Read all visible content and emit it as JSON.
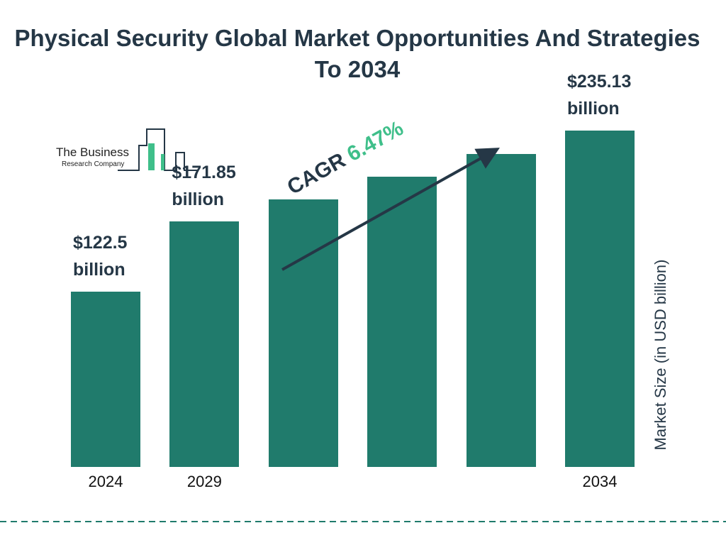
{
  "chart_data": {
    "type": "bar",
    "title": "Physical Security Global Market Opportunities And Strategies To 2034",
    "categories": [
      "2024",
      "2029",
      null,
      null,
      null,
      "2034"
    ],
    "values": [
      122.5,
      171.85,
      187,
      203,
      219,
      235.13
    ],
    "value_labels": [
      "$122.5 billion",
      "$171.85 billion",
      null,
      null,
      null,
      "$235.13 billion"
    ],
    "color": "#207b6c",
    "y_axis_label": "Market Size (in USD billion)",
    "annotation": {
      "label": "CAGR",
      "value": "6.47%"
    },
    "logo": {
      "line1": "The Business",
      "line2": "Research Company"
    }
  }
}
